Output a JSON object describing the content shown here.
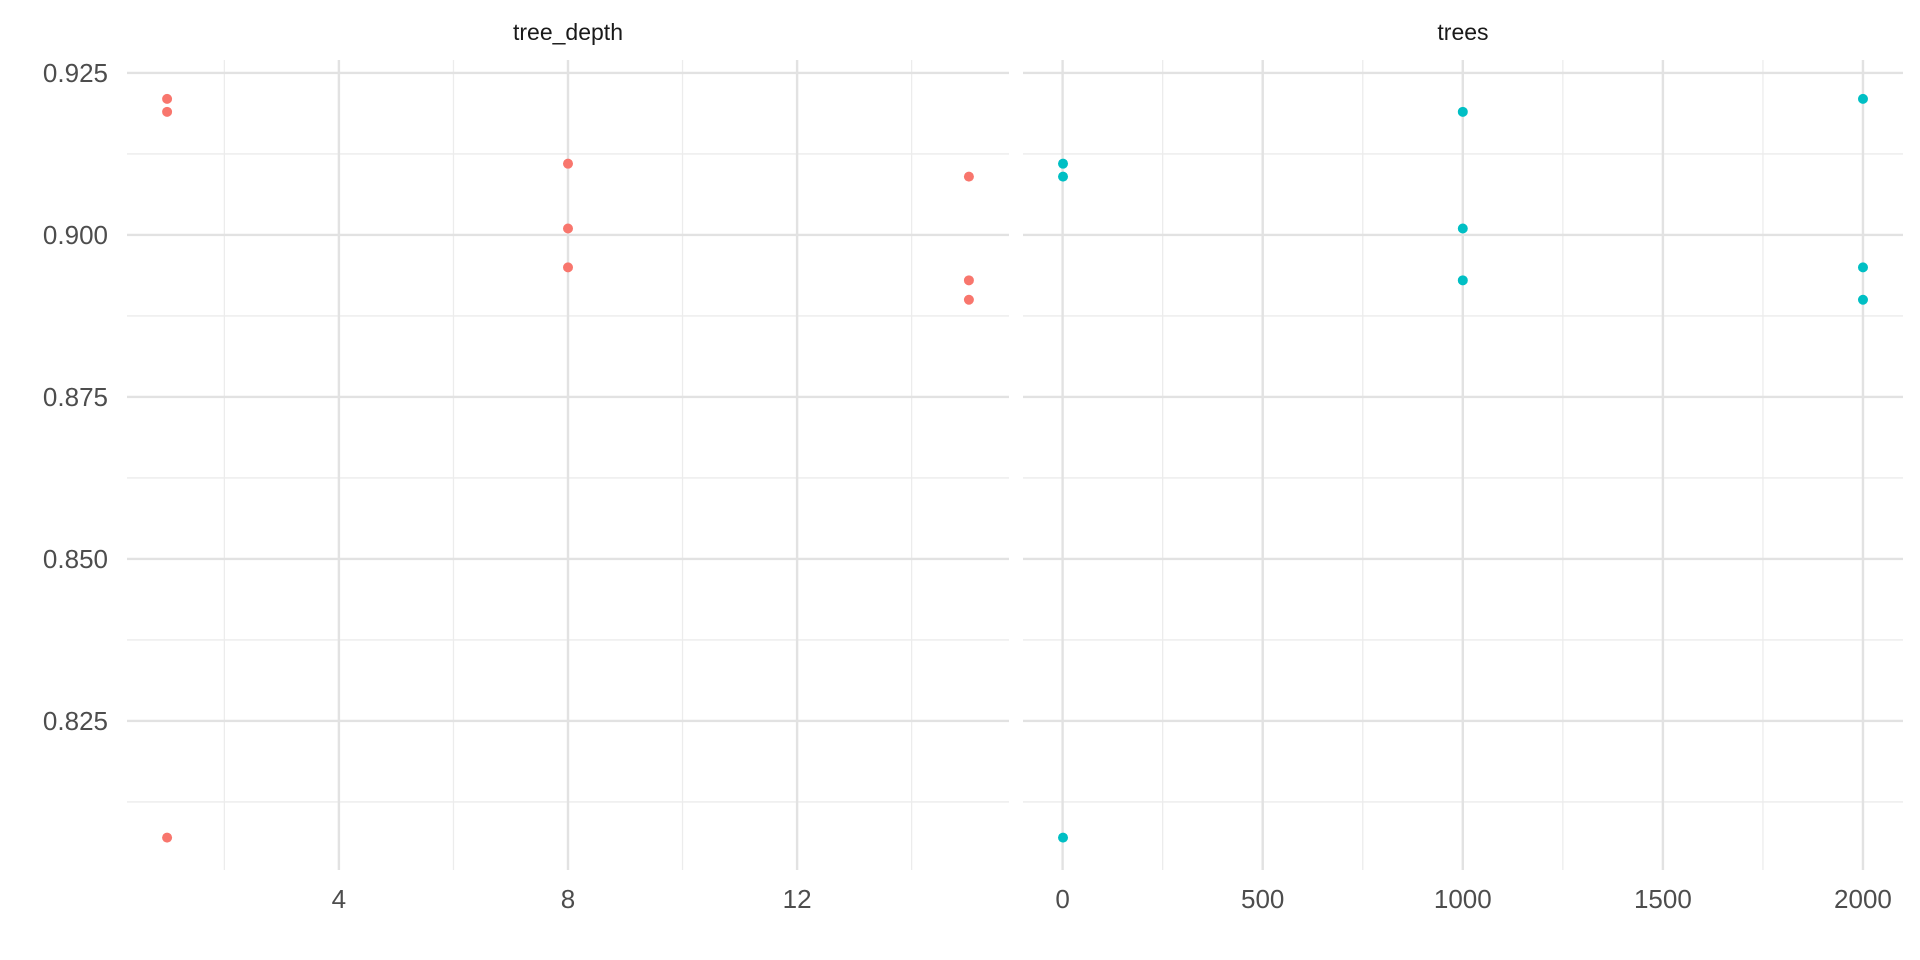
{
  "chart_data": {
    "type": "scatter",
    "layout": "faceted_grid_1x2",
    "title": "",
    "xlabel": "",
    "ylabel": "",
    "legend": "none",
    "grid": true,
    "background": "#ffffff",
    "shared_y": {
      "ylim": [
        0.802,
        0.927
      ],
      "major_breaks": [
        0.925,
        0.9,
        0.875,
        0.85,
        0.825
      ],
      "tick_labels": [
        "0.925",
        "0.900",
        "0.875",
        "0.850",
        "0.825"
      ],
      "minor_breaks": [
        0.9125,
        0.8875,
        0.8625,
        0.8375,
        0.8125
      ]
    },
    "facets": [
      {
        "title": "tree_depth",
        "point_color": "#F8766D",
        "xlim": [
          0.3,
          15.7
        ],
        "x_major_breaks": [
          4,
          8,
          12
        ],
        "x_tick_labels": [
          "4",
          "8",
          "12"
        ],
        "x_minor_breaks": [
          2,
          6,
          10,
          14
        ],
        "points": [
          [
            1,
            0.921
          ],
          [
            1,
            0.919
          ],
          [
            1,
            0.807
          ],
          [
            8,
            0.911
          ],
          [
            8,
            0.901
          ],
          [
            8,
            0.895
          ],
          [
            15,
            0.909
          ],
          [
            15,
            0.893
          ],
          [
            15,
            0.89
          ]
        ]
      },
      {
        "title": "trees",
        "point_color": "#00BFC4",
        "xlim": [
          -99,
          2100
        ],
        "x_major_breaks": [
          0,
          500,
          1000,
          1500,
          2000
        ],
        "x_tick_labels": [
          "0",
          "500",
          "1000",
          "1500",
          "2000"
        ],
        "x_minor_breaks": [
          250,
          750,
          1250,
          1750
        ],
        "points": [
          [
            1,
            0.911
          ],
          [
            1,
            0.909
          ],
          [
            1,
            0.807
          ],
          [
            1000,
            0.919
          ],
          [
            1000,
            0.901
          ],
          [
            1000,
            0.893
          ],
          [
            2000,
            0.921
          ],
          [
            2000,
            0.895
          ],
          [
            2000,
            0.89
          ]
        ]
      }
    ],
    "point_radius_px": 5
  },
  "style": {
    "grid_major_color": "#e2e2e2",
    "grid_minor_color": "#ececec",
    "axis_text_color": "#4d4d4d",
    "strip_text_color": "#1a1a1a",
    "background_color": "#ffffff"
  }
}
